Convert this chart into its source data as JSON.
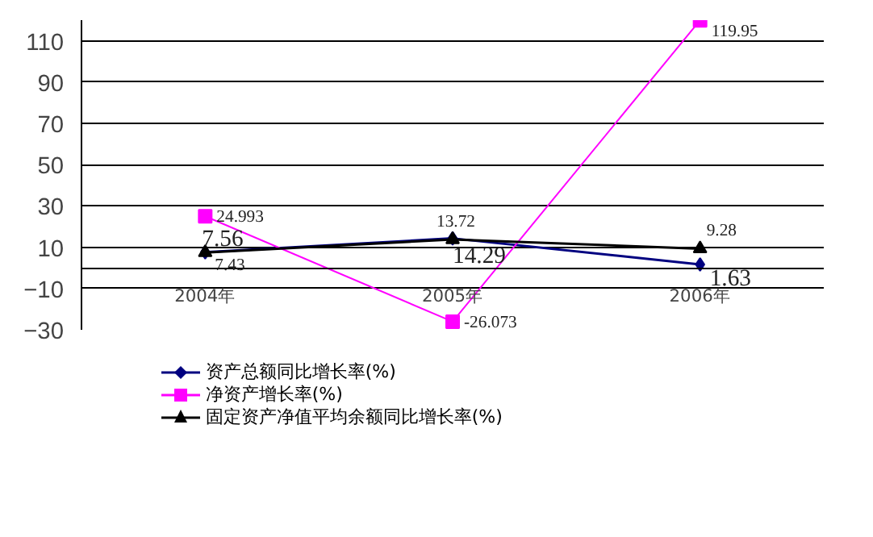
{
  "chart_data": {
    "type": "line",
    "categories": [
      "2004年",
      "2005年",
      "2006年"
    ],
    "series": [
      {
        "name": "资产总额同比增长率(%)",
        "color": "#000080",
        "marker": "diamond",
        "values": [
          7.56,
          14.29,
          1.63
        ]
      },
      {
        "name": "净资产增长率(%)",
        "color": "#ff00ff",
        "marker": "square",
        "values": [
          24.993,
          -26.073,
          119.95
        ]
      },
      {
        "name": "固定资产净值平均余额同比增长率(%)",
        "color": "#000000",
        "marker": "triangle",
        "values": [
          7.43,
          13.72,
          9.28
        ]
      }
    ],
    "ylim": [
      -30,
      120
    ],
    "yticks": [
      -30,
      -10,
      10,
      30,
      50,
      70,
      90,
      110
    ],
    "grid": "y",
    "legend": "bottom",
    "data_labels": true,
    "line_style": "solid"
  }
}
